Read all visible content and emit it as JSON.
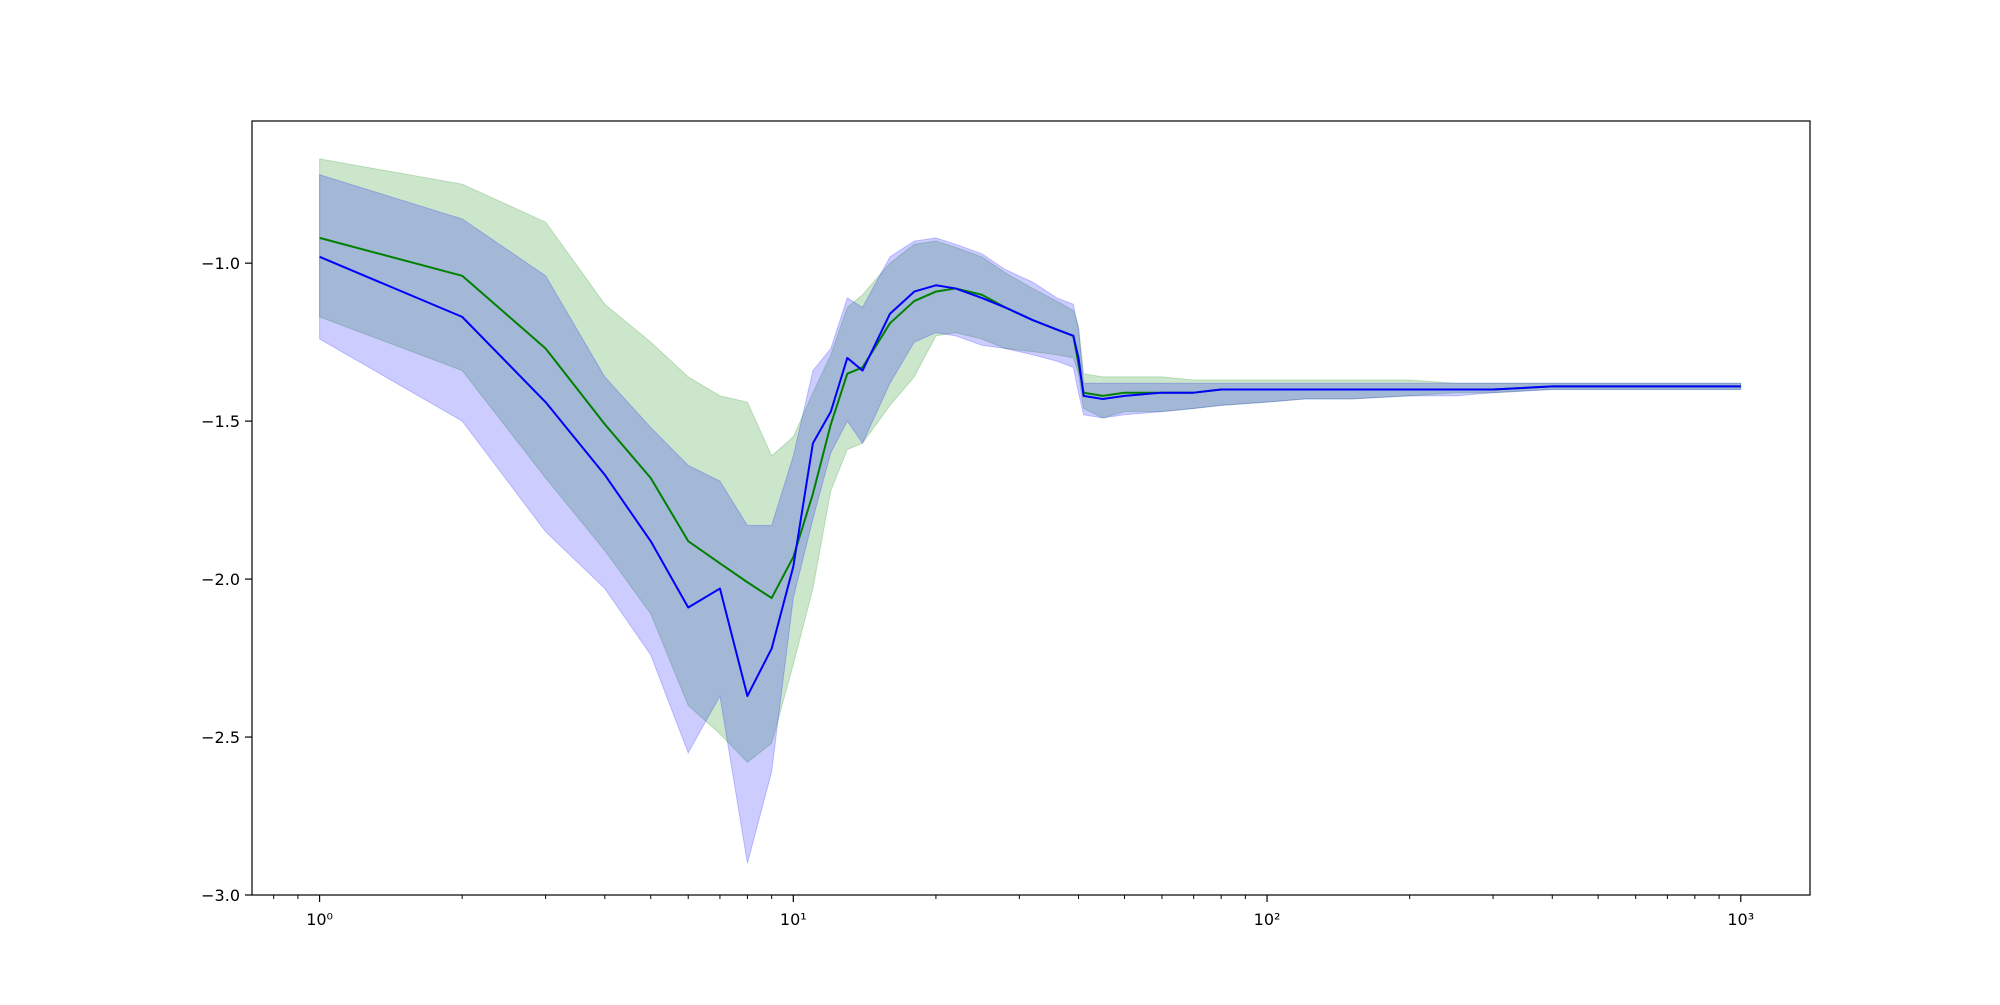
{
  "chart_data": {
    "type": "line",
    "title": "",
    "xlabel": "",
    "ylabel": "",
    "xscale": "log",
    "xlim": [
      0.72,
      1400
    ],
    "ylim": [
      -3.0,
      -0.55
    ],
    "grid": false,
    "legend": "none",
    "x_ticks": [
      {
        "value": 1,
        "label": "10⁰"
      },
      {
        "value": 10,
        "label": "10¹"
      },
      {
        "value": 100,
        "label": "10²"
      },
      {
        "value": 1000,
        "label": "10³"
      }
    ],
    "y_ticks": [
      {
        "value": -1.0,
        "label": "−1.0"
      },
      {
        "value": -1.5,
        "label": "−1.5"
      },
      {
        "value": -2.0,
        "label": "−2.0"
      },
      {
        "value": -2.5,
        "label": "−2.5"
      },
      {
        "value": -3.0,
        "label": "−3.0"
      }
    ],
    "series": [
      {
        "color": "#008000",
        "band_color": "#008000",
        "band_opacity": 0.2,
        "x": [
          1,
          2,
          3,
          4,
          5,
          6,
          7,
          8,
          9,
          10,
          11,
          12,
          13,
          14,
          16,
          18,
          20,
          22,
          25,
          28,
          32,
          36,
          39,
          40,
          41,
          45,
          50,
          60,
          70,
          80,
          100,
          120,
          150,
          200,
          250,
          300,
          400,
          500,
          700,
          1000
        ],
        "y": [
          -0.92,
          -1.04,
          -1.27,
          -1.51,
          -1.68,
          -1.88,
          -1.95,
          -2.01,
          -2.06,
          -1.93,
          -1.73,
          -1.51,
          -1.35,
          -1.33,
          -1.19,
          -1.12,
          -1.09,
          -1.08,
          -1.1,
          -1.14,
          -1.18,
          -1.21,
          -1.23,
          -1.32,
          -1.41,
          -1.42,
          -1.41,
          -1.41,
          -1.41,
          -1.4,
          -1.4,
          -1.4,
          -1.4,
          -1.4,
          -1.4,
          -1.4,
          -1.39,
          -1.39,
          -1.39,
          -1.39
        ],
        "lower": [
          -1.17,
          -1.34,
          -1.68,
          -1.91,
          -2.11,
          -2.4,
          -2.49,
          -2.58,
          -2.52,
          -2.27,
          -2.03,
          -1.72,
          -1.59,
          -1.57,
          -1.45,
          -1.36,
          -1.23,
          -1.22,
          -1.24,
          -1.27,
          -1.28,
          -1.29,
          -1.3,
          -1.35,
          -1.46,
          -1.49,
          -1.47,
          -1.47,
          -1.46,
          -1.45,
          -1.44,
          -1.43,
          -1.43,
          -1.42,
          -1.41,
          -1.41,
          -1.4,
          -1.4,
          -1.4,
          -1.4
        ],
        "upper": [
          -0.67,
          -0.75,
          -0.87,
          -1.13,
          -1.25,
          -1.36,
          -1.42,
          -1.44,
          -1.61,
          -1.55,
          -1.41,
          -1.29,
          -1.14,
          -1.1,
          -1.0,
          -0.94,
          -0.93,
          -0.95,
          -0.98,
          -1.03,
          -1.08,
          -1.12,
          -1.15,
          -1.2,
          -1.35,
          -1.36,
          -1.36,
          -1.36,
          -1.37,
          -1.37,
          -1.37,
          -1.37,
          -1.37,
          -1.37,
          -1.38,
          -1.38,
          -1.38,
          -1.38,
          -1.38,
          -1.38
        ]
      },
      {
        "color": "#0000ff",
        "band_color": "#0000ff",
        "band_opacity": 0.2,
        "x": [
          1,
          2,
          3,
          4,
          5,
          6,
          7,
          8,
          9,
          10,
          11,
          12,
          13,
          14,
          16,
          18,
          20,
          22,
          25,
          28,
          32,
          36,
          39,
          40,
          41,
          45,
          50,
          60,
          70,
          80,
          100,
          120,
          150,
          200,
          250,
          300,
          400,
          500,
          700,
          1000
        ],
        "y": [
          -0.98,
          -1.17,
          -1.44,
          -1.67,
          -1.88,
          -2.09,
          -2.03,
          -2.37,
          -2.22,
          -1.96,
          -1.57,
          -1.47,
          -1.3,
          -1.34,
          -1.16,
          -1.09,
          -1.07,
          -1.08,
          -1.11,
          -1.14,
          -1.18,
          -1.21,
          -1.23,
          -1.3,
          -1.42,
          -1.43,
          -1.42,
          -1.41,
          -1.41,
          -1.4,
          -1.4,
          -1.4,
          -1.4,
          -1.4,
          -1.4,
          -1.4,
          -1.39,
          -1.39,
          -1.39,
          -1.39
        ],
        "lower": [
          -1.24,
          -1.5,
          -1.85,
          -2.03,
          -2.24,
          -2.55,
          -2.37,
          -2.9,
          -2.61,
          -2.06,
          -1.81,
          -1.6,
          -1.5,
          -1.57,
          -1.38,
          -1.25,
          -1.22,
          -1.23,
          -1.26,
          -1.27,
          -1.29,
          -1.31,
          -1.33,
          -1.41,
          -1.48,
          -1.49,
          -1.48,
          -1.47,
          -1.46,
          -1.45,
          -1.44,
          -1.43,
          -1.43,
          -1.42,
          -1.42,
          -1.41,
          -1.4,
          -1.4,
          -1.4,
          -1.4
        ],
        "upper": [
          -0.72,
          -0.86,
          -1.04,
          -1.36,
          -1.52,
          -1.64,
          -1.69,
          -1.83,
          -1.83,
          -1.61,
          -1.34,
          -1.27,
          -1.11,
          -1.14,
          -0.98,
          -0.93,
          -0.92,
          -0.94,
          -0.97,
          -1.02,
          -1.06,
          -1.11,
          -1.13,
          -1.21,
          -1.38,
          -1.38,
          -1.38,
          -1.38,
          -1.38,
          -1.38,
          -1.38,
          -1.38,
          -1.38,
          -1.38,
          -1.38,
          -1.38,
          -1.38,
          -1.38,
          -1.38,
          -1.38
        ]
      }
    ]
  }
}
